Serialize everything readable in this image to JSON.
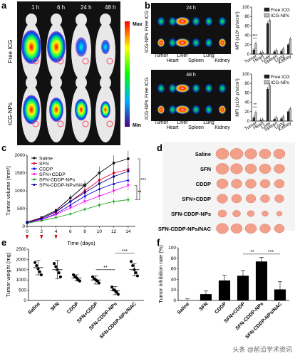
{
  "panels": {
    "a": {
      "letter": "a",
      "times": [
        "1 h",
        "6 h",
        "24 h",
        "48 h"
      ],
      "rows": [
        "Free ICG",
        "ICG-NPs"
      ],
      "colorbar": {
        "max": "Max",
        "min": "Min"
      }
    },
    "b": {
      "letter": "b",
      "rows": [
        {
          "time": "24 h",
          "labels": [
            "Free ICG",
            "ICG-NPs"
          ]
        },
        {
          "time": "48 h",
          "labels": [
            "Free ICG",
            "ICG-NPs"
          ]
        }
      ],
      "organs": [
        "Tumor",
        "Heart",
        "Liver",
        "Spleen",
        "Lung",
        "Kidney"
      ]
    },
    "c": {
      "letter": "c"
    },
    "d": {
      "letter": "d",
      "groups": [
        "Saline",
        "SFN",
        "CDDP",
        "SFN+CDDP",
        "SFN-CDDP-NPs",
        "SFN-CDDP-NPs/NAC"
      ]
    },
    "e": {
      "letter": "e"
    },
    "f": {
      "letter": "f"
    }
  },
  "chart_data": [
    {
      "id": "b-top",
      "type": "bar",
      "categories": [
        "Tumor",
        "Heart",
        "Liver",
        "Spleen",
        "Lung",
        "Kidney"
      ],
      "series": [
        {
          "name": "Free ICG",
          "values": [
            9,
            2,
            65,
            5,
            6,
            20
          ],
          "color": "#222222"
        },
        {
          "name": "ICG-NPs",
          "values": [
            22,
            4,
            72,
            8,
            11,
            32
          ],
          "color": "#bdbdbd"
        }
      ],
      "ylabel": "MFI (x10⁶ p/s/cm²)",
      "yticks": [
        0,
        20,
        40,
        60,
        80,
        100
      ],
      "ylim": [
        0,
        100
      ],
      "annotations": [
        "***"
      ],
      "legend": "top-right"
    },
    {
      "id": "b-bottom",
      "type": "bar",
      "categories": [
        "Tumor",
        "Heart",
        "Liver",
        "Spleen",
        "Lung",
        "Kidney"
      ],
      "series": [
        {
          "name": "Free ICG",
          "values": [
            7,
            2,
            68,
            4,
            5,
            20
          ],
          "color": "#222222"
        },
        {
          "name": "ICG-NPs",
          "values": [
            18,
            3,
            76,
            7,
            9,
            26
          ],
          "color": "#bdbdbd"
        }
      ],
      "ylabel": "MFI (x10⁶ p/s/cm²)",
      "yticks": [
        0,
        20,
        40,
        60,
        80,
        100
      ],
      "ylim": [
        0,
        100
      ],
      "annotations": [
        "**"
      ],
      "legend": "top-right"
    },
    {
      "id": "c",
      "type": "line",
      "x": [
        0,
        2,
        4,
        6,
        8,
        10,
        12,
        14
      ],
      "xticks": [
        "0",
        "2",
        "4",
        "6",
        "8",
        "10",
        "12",
        "14"
      ],
      "yticks": [
        "0",
        "500",
        "1000",
        "1500",
        "2000"
      ],
      "ylim": [
        0,
        2000
      ],
      "xlabel": "Time (days)",
      "ylabel": "Tumor volume (mm³)",
      "series": [
        {
          "name": "Saline",
          "values": [
            120,
            250,
            450,
            800,
            1150,
            1500,
            1780,
            1900
          ],
          "color": "#000000"
        },
        {
          "name": "SFN",
          "values": [
            110,
            230,
            400,
            700,
            1000,
            1300,
            1500,
            1600
          ],
          "color": "#e4002b"
        },
        {
          "name": "CDDP",
          "values": [
            100,
            200,
            350,
            600,
            850,
            1050,
            1200,
            1300
          ],
          "color": "#0000dd"
        },
        {
          "name": "SFN+CDDP",
          "values": [
            100,
            190,
            330,
            520,
            700,
            850,
            1000,
            1150
          ],
          "color": "#ff00ff"
        },
        {
          "name": "SFN-CDDP-NPs",
          "values": [
            90,
            160,
            250,
            350,
            480,
            600,
            700,
            750
          ],
          "color": "#22aa22"
        },
        {
          "name": "SFN-CDDP-NPs/NAC",
          "values": [
            110,
            220,
            420,
            700,
            950,
            1200,
            1400,
            1550
          ],
          "color": "#00008b"
        }
      ],
      "annotations": [
        "***",
        "**"
      ],
      "legend": "top-left"
    },
    {
      "id": "e",
      "type": "scatter",
      "categories": [
        "Saline",
        "SFN",
        "CDDP",
        "SFN+CDDP",
        "SFN-CDDP-NPs",
        "SFN-CDDP-NPs/NAC"
      ],
      "means": [
        1600,
        1500,
        1100,
        1000,
        480,
        1500
      ],
      "errors": [
        350,
        450,
        150,
        200,
        200,
        300
      ],
      "points": [
        [
          1850,
          1700,
          1550,
          1400,
          1250
        ],
        [
          1800,
          1650,
          1500,
          1350,
          1150
        ],
        [
          1250,
          1150,
          1100,
          1000,
          950
        ],
        [
          1150,
          1050,
          1000,
          950,
          850
        ],
        [
          650,
          520,
          480,
          400,
          300
        ],
        [
          1900,
          1700,
          1500,
          1350,
          1200
        ]
      ],
      "ylabel": "Tumor weight (mg)",
      "yticks": [
        0,
        500,
        1000,
        1500,
        2000,
        2500
      ],
      "ylim": [
        0,
        2500
      ],
      "annotations": [
        "**",
        "***"
      ]
    },
    {
      "id": "f",
      "type": "bar",
      "categories": [
        "Saline",
        "SFN",
        "CDDP",
        "SFN+CDDP",
        "SFN-CDDP-NPs",
        "SFN-CDDP-NPs/NAC"
      ],
      "values": [
        0,
        12,
        38,
        47,
        74,
        21
      ],
      "errors": [
        3,
        6,
        10,
        10,
        8,
        15
      ],
      "ylabel": "Tumor inhibition rate (%)",
      "yticks": [
        0,
        20,
        40,
        60,
        80,
        100
      ],
      "ylim": [
        0,
        100
      ],
      "annotations": [
        "**",
        "***"
      ]
    }
  ],
  "watermark": "头条 @前沿学术资讯"
}
